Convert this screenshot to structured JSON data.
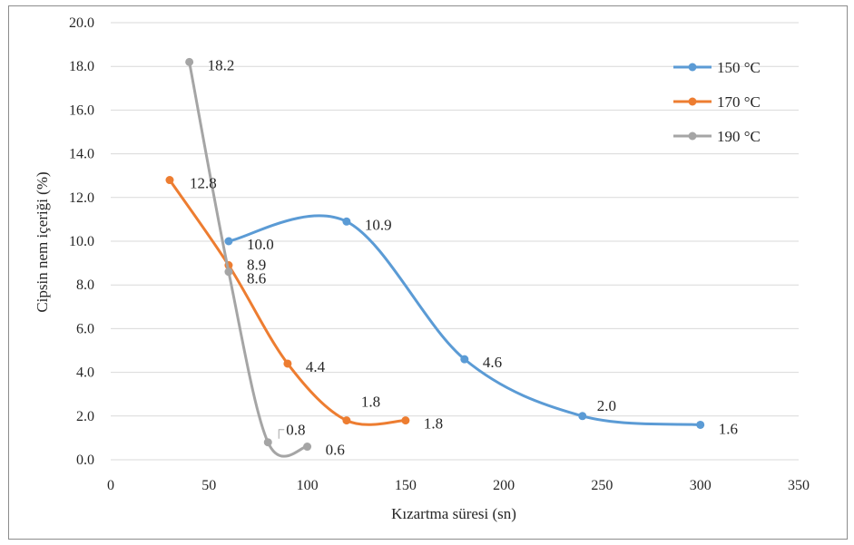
{
  "chart_data": {
    "type": "line",
    "xlabel": "Kızartma süresi (sn)",
    "ylabel": "Cipsin nem içeriği (%)",
    "xlim": [
      0,
      350
    ],
    "ylim": [
      0,
      20
    ],
    "x_ticks": [
      "0",
      "50",
      "100",
      "150",
      "200",
      "250",
      "300",
      "350"
    ],
    "y_ticks": [
      "0.0",
      "2.0",
      "4.0",
      "6.0",
      "8.0",
      "10.0",
      "12.0",
      "14.0",
      "16.0",
      "18.0",
      "20.0"
    ],
    "grid": "horizontal",
    "legend_position": "top-right",
    "smooth": true,
    "series": [
      {
        "name": "150 °C",
        "color": "#5b9bd5",
        "points": [
          {
            "x": 60,
            "y": 10.0,
            "label": "10.0"
          },
          {
            "x": 120,
            "y": 10.9,
            "label": "10.9"
          },
          {
            "x": 180,
            "y": 4.6,
            "label": "4.6"
          },
          {
            "x": 240,
            "y": 2.0,
            "label": "2.0"
          },
          {
            "x": 300,
            "y": 1.6,
            "label": "1.6"
          }
        ]
      },
      {
        "name": "170 °C",
        "color": "#ed7d31",
        "points": [
          {
            "x": 30,
            "y": 12.8,
            "label": "12.8"
          },
          {
            "x": 60,
            "y": 8.9,
            "label": "8.9"
          },
          {
            "x": 90,
            "y": 4.4,
            "label": "4.4"
          },
          {
            "x": 120,
            "y": 1.8,
            "label": "1.8"
          },
          {
            "x": 150,
            "y": 1.8,
            "label": "1.8"
          }
        ]
      },
      {
        "name": "190 °C",
        "color": "#a5a5a5",
        "points": [
          {
            "x": 40,
            "y": 18.2,
            "label": "18.2"
          },
          {
            "x": 60,
            "y": 8.6,
            "label": "8.6"
          },
          {
            "x": 80,
            "y": 0.8,
            "label": "0.8"
          },
          {
            "x": 100,
            "y": 0.6,
            "label": "0.6"
          }
        ]
      }
    ]
  }
}
